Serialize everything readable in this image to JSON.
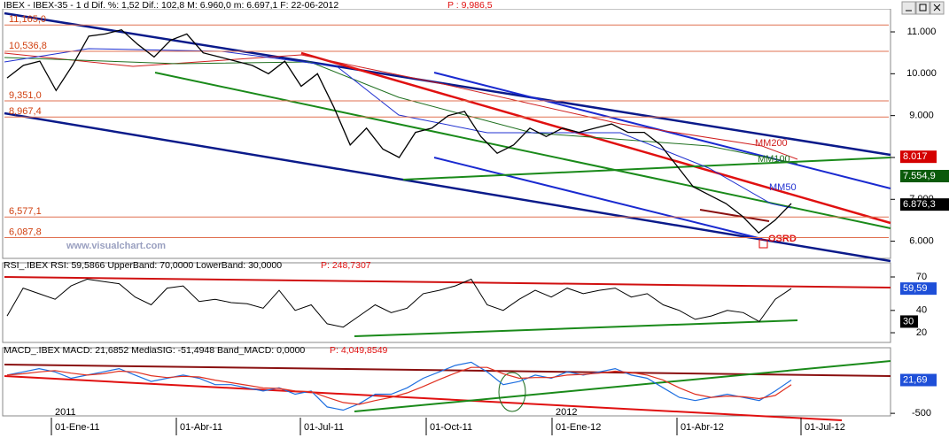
{
  "header": {
    "text": "IBEX - IBEX-35 - 1 d Dif. %: 1,52 Dif.: 102,8 M: 6.960,0 m: 6.697,1 F: 22-06-2012",
    "extra": "P : 9,986,5"
  },
  "price": {
    "values": [
      9900,
      10200,
      10300,
      9600,
      10200,
      10900,
      10950,
      11050,
      10700,
      10400,
      10800,
      10950,
      10500,
      10400,
      10300,
      10200,
      10000,
      10300,
      9700,
      10000,
      9200,
      8300,
      8700,
      8200,
      8000,
      8600,
      8700,
      9000,
      9100,
      8500,
      8100,
      8300,
      8700,
      8500,
      8700,
      8600,
      8700,
      8800,
      8600,
      8600,
      8300,
      7800,
      7300,
      7100,
      6900,
      6600,
      6200,
      6500,
      6900
    ],
    "ylim": [
      5590,
      11550
    ],
    "yticks": [
      {
        "value": 11000,
        "label": "11.000"
      },
      {
        "value": 10000,
        "label": "10.000"
      },
      {
        "value": 9000,
        "label": "9.000"
      },
      {
        "value": 8000,
        "label": "8.000"
      },
      {
        "value": 7000,
        "label": "7.000"
      },
      {
        "value": 6000,
        "label": "6.000"
      }
    ],
    "levels": [
      {
        "value": 11165,
        "label": "11,165,0"
      },
      {
        "value": 10536.8,
        "label": "10,536,8"
      },
      {
        "value": 9351,
        "label": "9,351,0"
      },
      {
        "value": 8967.4,
        "label": "8,967,4"
      },
      {
        "value": 6577.1,
        "label": "6,577,1"
      },
      {
        "value": 6087.8,
        "label": "6,087,8"
      }
    ],
    "flags": [
      {
        "value": 8017,
        "label": "8.017",
        "color": "#d40000"
      },
      {
        "value": 7554.9,
        "label": "7.554,9",
        "color": "#0a5a0a"
      },
      {
        "value": 6876.3,
        "label": "6.876,3",
        "color": "#000000"
      }
    ],
    "annotations": {
      "mm200": "MM200",
      "mm100": "MM100",
      "mm50": "MM50",
      "osrd": "OSRD",
      "site": "www.visualchart.com"
    }
  },
  "rsi": {
    "header": "RSI_.IBEX RSI: 59,5866 UpperBand: 70,0000 LowerBand: 30,0000",
    "extra": "P: 248,7307",
    "values": [
      35,
      60,
      55,
      50,
      62,
      68,
      66,
      64,
      52,
      45,
      60,
      62,
      48,
      50,
      47,
      46,
      42,
      58,
      40,
      45,
      28,
      25,
      35,
      45,
      38,
      42,
      55,
      58,
      62,
      68,
      45,
      40,
      50,
      58,
      52,
      60,
      55,
      58,
      60,
      52,
      55,
      45,
      40,
      32,
      35,
      40,
      38,
      30,
      50,
      59.59
    ],
    "ylim": [
      11.3,
      82.7
    ],
    "yticks": [
      70,
      40,
      20
    ],
    "flags": [
      {
        "value": 59.5866,
        "label": "59,59",
        "color": "#1e4fd8"
      },
      {
        "value": 30,
        "label": "30",
        "color": "#000000"
      }
    ]
  },
  "macd": {
    "header": "MACD_.IBEX MACD: 21,6852 MediaSIG: -51,4948 Band_MACD: 0,0000",
    "extra": "P: 4,049,8549",
    "series": [
      {
        "name": "MACD",
        "color": "#1e6fe0",
        "values": [
          100,
          150,
          200,
          150,
          50,
          100,
          150,
          200,
          100,
          0,
          50,
          100,
          50,
          -50,
          -50,
          -100,
          -150,
          -100,
          -200,
          -150,
          -400,
          -450,
          -350,
          -200,
          -200,
          -100,
          50,
          150,
          250,
          300,
          150,
          -50,
          0,
          100,
          50,
          150,
          100,
          150,
          200,
          100,
          50,
          -100,
          -250,
          -300,
          -250,
          -200,
          -250,
          -300,
          -150,
          21.69
        ]
      },
      {
        "name": "MediaSIG",
        "color": "#e03020",
        "values": [
          100,
          120,
          150,
          170,
          130,
          100,
          120,
          160,
          150,
          90,
          60,
          80,
          70,
          20,
          -20,
          -60,
          -100,
          -110,
          -150,
          -160,
          -250,
          -330,
          -360,
          -300,
          -250,
          -180,
          -80,
          30,
          130,
          220,
          220,
          120,
          50,
          60,
          60,
          100,
          110,
          130,
          160,
          140,
          100,
          20,
          -100,
          -200,
          -250,
          -230,
          -240,
          -270,
          -220,
          -51.49
        ]
      }
    ],
    "ylim": [
      -540,
      528
    ],
    "yticks": [
      -500
    ],
    "flags": [
      {
        "value": 21.6852,
        "label": "21,69",
        "color": "#1e4fd8"
      }
    ]
  },
  "dates": {
    "years": [
      "2011",
      "2012"
    ],
    "months": [
      "01-Ene-11",
      "01-Abr-11",
      "01-Jul-11",
      "01-Oct-11",
      "01-Ene-12",
      "01-Abr-12",
      "01-Jul-12"
    ]
  }
}
